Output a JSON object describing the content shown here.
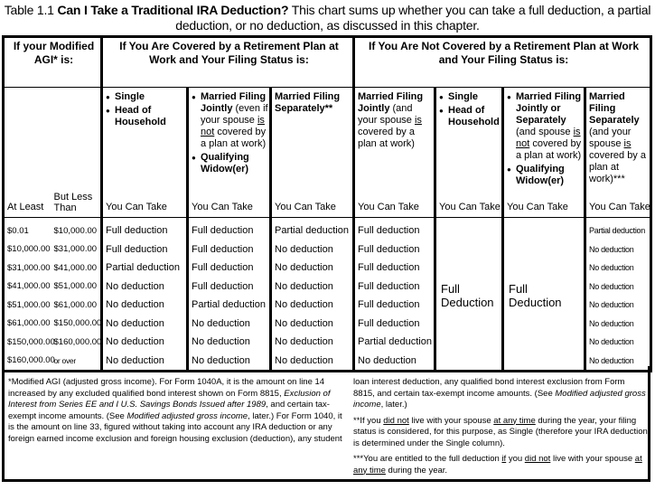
{
  "title": {
    "label": "Table 1.1",
    "heading": "Can I Take a Traditional IRA Deduction?",
    "text": "This chart sums up whether you can take a full deduction, a partial deduction, or no deduction, as discussed in this chapter."
  },
  "headers": {
    "agi": "If your Modified AGI* is:",
    "covered": "If You Are Covered by a Retirement Plan at Work and Your Filing Status is:",
    "not_covered": "If You Are Not Covered by a Retirement Plan at Work and Your Filing Status is:",
    "at_least": "At Least",
    "but_less_than": "But Less Than",
    "you_can_take": "You Can Take"
  },
  "status_columns": [
    {
      "blocks": [
        {
          "bullet": true,
          "segs": [
            [
              "Single",
              "b"
            ]
          ]
        },
        {
          "bullet": true,
          "segs": [
            [
              "Head of Household",
              "b"
            ]
          ]
        }
      ]
    },
    {
      "blocks": [
        {
          "bullet": true,
          "segs": [
            [
              "Married Filing Jointly",
              "b"
            ],
            [
              " (even if your spouse ",
              ""
            ],
            [
              "is not",
              "u"
            ],
            [
              " covered by a plan at work)",
              ""
            ]
          ]
        },
        {
          "bullet": true,
          "segs": [
            [
              "Qualifying Widow(er)",
              "b"
            ]
          ]
        }
      ]
    },
    {
      "blocks": [
        {
          "bullet": false,
          "segs": [
            [
              "Married Filing Separately**",
              "b"
            ]
          ]
        }
      ]
    },
    {
      "blocks": [
        {
          "bullet": false,
          "segs": [
            [
              "Married Filing Jointly",
              "b"
            ],
            [
              " (and your spouse ",
              ""
            ],
            [
              "is",
              "u"
            ],
            [
              " covered by a plan at work)",
              ""
            ]
          ]
        }
      ]
    },
    {
      "blocks": [
        {
          "bullet": true,
          "segs": [
            [
              "Single",
              "b"
            ]
          ]
        },
        {
          "bullet": true,
          "segs": [
            [
              "Head of Household",
              "b"
            ]
          ]
        }
      ]
    },
    {
      "blocks": [
        {
          "bullet": true,
          "segs": [
            [
              "Married Filing Jointly or Separately",
              "b"
            ],
            [
              " (and spouse ",
              ""
            ],
            [
              "is not",
              "u"
            ],
            [
              " covered by a plan at work)",
              ""
            ]
          ]
        },
        {
          "bullet": true,
          "segs": [
            [
              "Qualifying Widow(er)",
              "b"
            ]
          ]
        }
      ]
    },
    {
      "blocks": [
        {
          "bullet": false,
          "segs": [
            [
              "Married Filing Separately",
              "b"
            ],
            [
              " (and your spouse ",
              ""
            ],
            [
              "is",
              "u"
            ],
            [
              " covered by a plan at work)***",
              ""
            ]
          ]
        }
      ]
    }
  ],
  "merged_full": "Full Deduction",
  "rows": [
    {
      "at_least": "$0.01",
      "less_than": "$10,000.00",
      "c1": "Full deduction",
      "c2": "Full deduction",
      "c3": "Partial deduction",
      "c4": "Full deduction",
      "c7": "Partial deduction"
    },
    {
      "at_least": "$10,000.00",
      "less_than": "$31,000.00",
      "c1": "Full deduction",
      "c2": "Full deduction",
      "c3": "No deduction",
      "c4": "Full deduction",
      "c7": "No deduction"
    },
    {
      "at_least": "$31,000.00",
      "less_than": "$41,000.00",
      "c1": "Partial deduction",
      "c2": "Full deduction",
      "c3": "No deduction",
      "c4": "Full deduction",
      "c7": "No deduction"
    },
    {
      "at_least": "$41,000.00",
      "less_than": "$51,000.00",
      "c1": "No deduction",
      "c2": "Full deduction",
      "c3": "No deduction",
      "c4": "Full deduction",
      "c7": "No deduction"
    },
    {
      "at_least": "$51,000.00",
      "less_than": "$61,000.00",
      "c1": "No deduction",
      "c2": "Partial deduction",
      "c3": "No deduction",
      "c4": "Full deduction",
      "c7": "No deduction"
    },
    {
      "at_least": "$61,000.00",
      "less_than": "$150,000.00",
      "c1": "No deduction",
      "c2": "No deduction",
      "c3": "No deduction",
      "c4": "Full deduction",
      "c7": "No deduction"
    },
    {
      "at_least": "$150,000.00",
      "less_than": "$160,000.00",
      "c1": "No deduction",
      "c2": "No deduction",
      "c3": "No deduction",
      "c4": "Partial deduction",
      "c7": "No deduction"
    },
    {
      "at_least": "$160,000.00",
      "less_than": "or over",
      "c1": "No deduction",
      "c2": "No deduction",
      "c3": "No deduction",
      "c4": "No deduction",
      "c7": "No deduction"
    }
  ],
  "footnotes": {
    "left": [
      [
        [
          "*Modified AGI (adjusted gross income). For Form 1040A, it is the amount on line 14 increased by any excluded qualified bond interest shown on Form 8815, ",
          ""
        ],
        [
          "Exclusion of Interest from Series EE and I U.S. Savings Bonds Issued after 1989",
          "i"
        ],
        [
          ", and certain tax-exempt income amounts. (See ",
          ""
        ],
        [
          "Modified adjusted gross income",
          "i"
        ],
        [
          ", later.) For Form 1040, it is the amount on line 33, figured without taking into account any IRA deduction or any foreign earned income exclusion and foreign housing exclusion (deduction), any student",
          ""
        ]
      ]
    ],
    "right": [
      [
        [
          "loan interest deduction, any qualified bond interest exclusion from Form 8815, and certain tax-exempt income amounts. (See ",
          ""
        ],
        [
          "Modified adjusted gross income",
          "i"
        ],
        [
          ", later.)",
          ""
        ]
      ],
      [
        [
          "**If you ",
          ""
        ],
        [
          "did not",
          "u"
        ],
        [
          " live with your spouse ",
          ""
        ],
        [
          "at any time",
          "u"
        ],
        [
          " during the year, your filing status is considered, for this purpose, as Single (therefore your IRA deduction is determined under the  Single  column).",
          ""
        ]
      ],
      [
        [
          "***You are entitled to the full deduction ",
          ""
        ],
        [
          "if",
          "u"
        ],
        [
          " you ",
          ""
        ],
        [
          "did not",
          "u"
        ],
        [
          " live with your spouse ",
          ""
        ],
        [
          "at any time",
          "u"
        ],
        [
          " during the year.",
          ""
        ]
      ]
    ]
  }
}
